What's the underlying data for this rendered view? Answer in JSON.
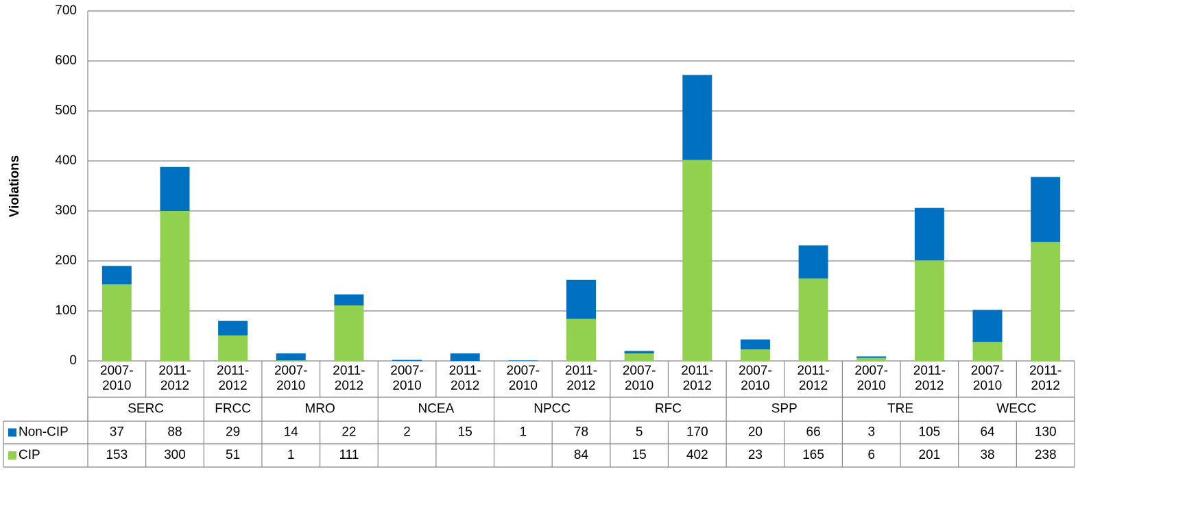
{
  "chart_data": {
    "type": "bar",
    "stacked": true,
    "y_label": "Violations",
    "groups": [
      {
        "name": "SERC",
        "categories": [
          "2007-2010",
          "2011-2012"
        ]
      },
      {
        "name": "FRCC",
        "categories": [
          "2011-2012"
        ]
      },
      {
        "name": "MRO",
        "categories": [
          "2007-2010",
          "2011-2012"
        ]
      },
      {
        "name": "NCEA",
        "categories": [
          "2007-2010",
          "2011-2012"
        ]
      },
      {
        "name": "NPCC",
        "categories": [
          "2007-2010",
          "2011-2012"
        ]
      },
      {
        "name": "RFC",
        "categories": [
          "2007-2010",
          "2011-2012"
        ]
      },
      {
        "name": "SPP",
        "categories": [
          "2007-2010",
          "2011-2012"
        ]
      },
      {
        "name": "TRE",
        "categories": [
          "2007-2010",
          "2011-2012"
        ]
      },
      {
        "name": "WECC",
        "categories": [
          "2007-2010",
          "2011-2012"
        ]
      }
    ],
    "series": [
      {
        "name": "Non-CIP",
        "color": "#0070c0",
        "values": [
          37,
          88,
          29,
          14,
          22,
          2,
          15,
          1,
          78,
          5,
          170,
          20,
          66,
          3,
          105,
          64,
          130
        ]
      },
      {
        "name": "CIP",
        "color": "#92d050",
        "values": [
          153,
          300,
          51,
          1,
          111,
          null,
          null,
          null,
          84,
          15,
          402,
          23,
          165,
          6,
          201,
          38,
          238
        ]
      }
    ],
    "ylim": [
      0,
      700
    ],
    "yticks": [
      0,
      100,
      200,
      300,
      400,
      500,
      600,
      700
    ],
    "grid": true
  }
}
